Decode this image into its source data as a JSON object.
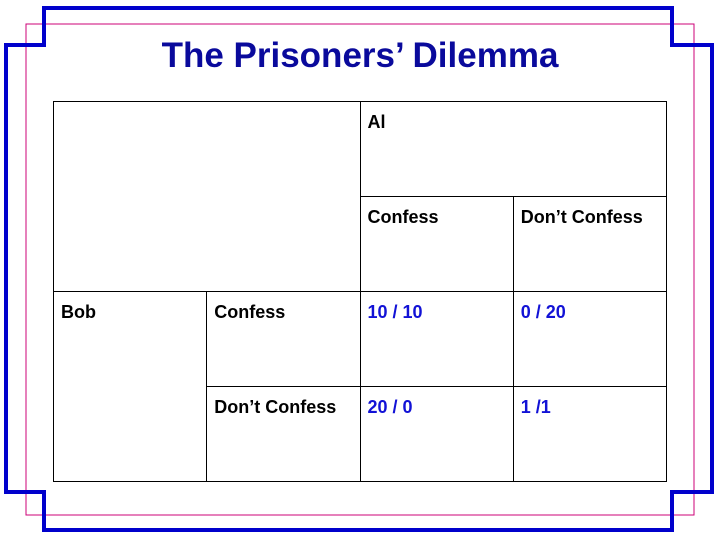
{
  "slide": {
    "title": "The Prisoners’ Dilemma"
  },
  "matrix": {
    "column_player": "Al",
    "row_player": "Bob",
    "column_strategies": [
      "Confess",
      "Don’t Confess"
    ],
    "row_strategies": [
      "Confess",
      "Don’t Confess"
    ],
    "payoffs": [
      [
        "10 / 10",
        "0 / 20"
      ],
      [
        "20 / 0",
        "1 /1"
      ]
    ]
  },
  "colors": {
    "title": "#0a0a9c",
    "frame": "#0000cc",
    "guide": "#cc0077",
    "payoff_text": "#1212d6",
    "grid": "#000000"
  }
}
